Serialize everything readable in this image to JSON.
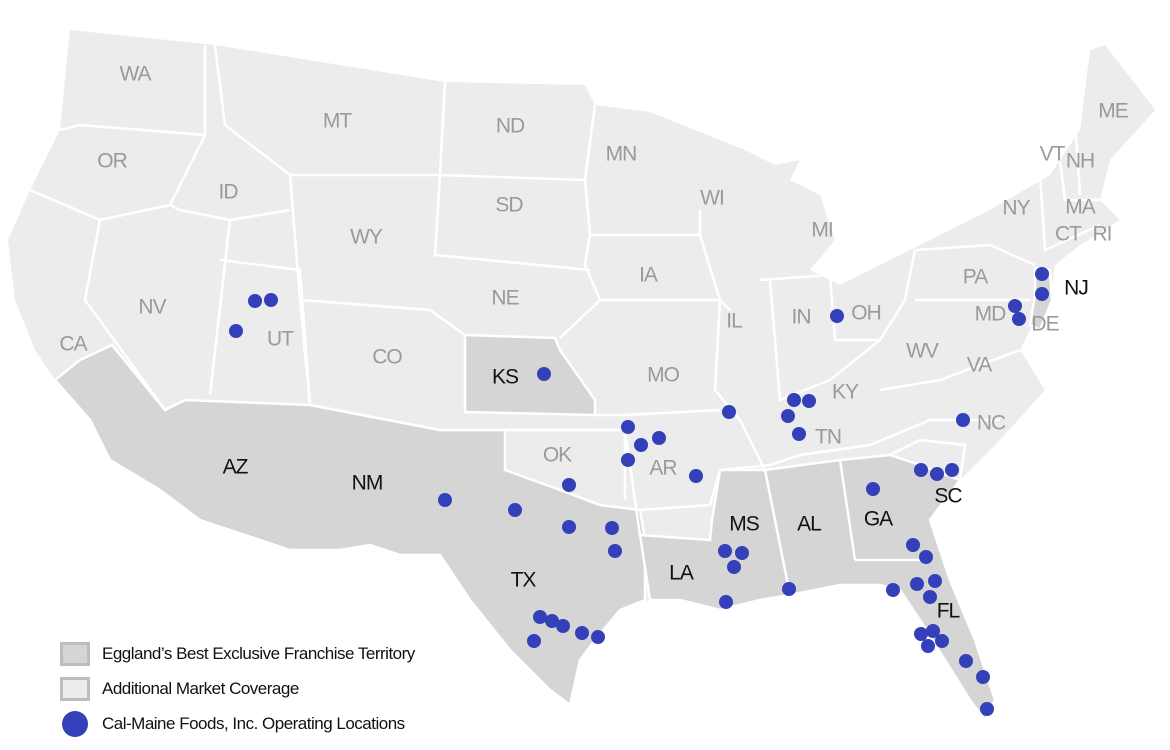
{
  "colors": {
    "territory": "#d5d5d5",
    "coverage": "#ececec",
    "border": "#ffffff",
    "location_dot": "#3440b9",
    "label_territory": "#111111",
    "label_coverage": "#9a9a9a"
  },
  "legend": [
    {
      "type": "territory",
      "label": "Eggland’s Best Exclusive Franchise Territory"
    },
    {
      "type": "coverage",
      "label": "Additional Market Coverage"
    },
    {
      "type": "location",
      "label": "Cal-Maine Foods, Inc. Operating Locations"
    }
  ],
  "states": [
    {
      "abbr": "WA",
      "territory": false
    },
    {
      "abbr": "OR",
      "territory": false
    },
    {
      "abbr": "CA",
      "territory": false
    },
    {
      "abbr": "NV",
      "territory": false
    },
    {
      "abbr": "ID",
      "territory": false
    },
    {
      "abbr": "MT",
      "territory": false
    },
    {
      "abbr": "WY",
      "territory": false
    },
    {
      "abbr": "UT",
      "territory": false
    },
    {
      "abbr": "CO",
      "territory": false
    },
    {
      "abbr": "AZ",
      "territory": true
    },
    {
      "abbr": "NM",
      "territory": true
    },
    {
      "abbr": "ND",
      "territory": false
    },
    {
      "abbr": "SD",
      "territory": false
    },
    {
      "abbr": "NE",
      "territory": false
    },
    {
      "abbr": "KS",
      "territory": true
    },
    {
      "abbr": "OK",
      "territory": false
    },
    {
      "abbr": "TX",
      "territory": true
    },
    {
      "abbr": "MN",
      "territory": false
    },
    {
      "abbr": "IA",
      "territory": false
    },
    {
      "abbr": "MO",
      "territory": false
    },
    {
      "abbr": "AR",
      "territory": false
    },
    {
      "abbr": "LA",
      "territory": true
    },
    {
      "abbr": "WI",
      "territory": false
    },
    {
      "abbr": "IL",
      "territory": false
    },
    {
      "abbr": "MS",
      "territory": true
    },
    {
      "abbr": "AL",
      "territory": true
    },
    {
      "abbr": "MI",
      "territory": false
    },
    {
      "abbr": "IN",
      "territory": false
    },
    {
      "abbr": "OH",
      "territory": false
    },
    {
      "abbr": "KY",
      "territory": false
    },
    {
      "abbr": "TN",
      "territory": false
    },
    {
      "abbr": "GA",
      "territory": true
    },
    {
      "abbr": "FL",
      "territory": true
    },
    {
      "abbr": "SC",
      "territory": true
    },
    {
      "abbr": "NC",
      "territory": false
    },
    {
      "abbr": "VA",
      "territory": false
    },
    {
      "abbr": "WV",
      "territory": false
    },
    {
      "abbr": "PA",
      "territory": false
    },
    {
      "abbr": "NY",
      "territory": false
    },
    {
      "abbr": "MD",
      "territory": false
    },
    {
      "abbr": "DE",
      "territory": false
    },
    {
      "abbr": "NJ",
      "territory": true
    },
    {
      "abbr": "VT",
      "territory": false
    },
    {
      "abbr": "NH",
      "territory": false
    },
    {
      "abbr": "ME",
      "territory": false
    },
    {
      "abbr": "MA",
      "territory": false
    },
    {
      "abbr": "CT",
      "territory": false
    },
    {
      "abbr": "RI",
      "territory": false
    }
  ],
  "operating_locations_by_state": {
    "UT": 3,
    "KS": 1,
    "OH": 1,
    "NJ": 2,
    "MD/DE": 2,
    "KY/TN": 4,
    "IL": 1,
    "NC": 1,
    "MO/AR": 5,
    "OK": 1,
    "TX": 11,
    "MS/LA/AL": 5,
    "GA/SC": 4,
    "FL": 13
  }
}
